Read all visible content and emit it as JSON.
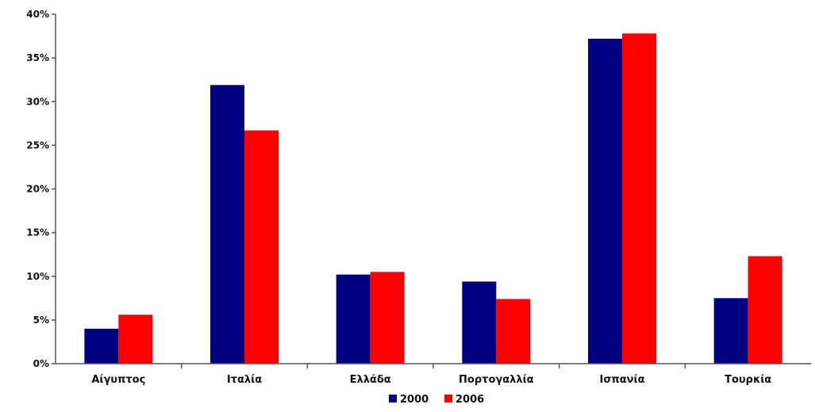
{
  "chart_data": {
    "type": "bar",
    "title": "",
    "xlabel": "",
    "ylabel": "",
    "categories": [
      "Αίγυπτος",
      "Ιταλία",
      "Ελλάδα",
      "Πορτογαλλία",
      "Ισπανία",
      "Τουρκία"
    ],
    "series": [
      {
        "name": "2000",
        "color": "#000080",
        "values": [
          4.0,
          31.9,
          10.2,
          9.4,
          37.2,
          7.5
        ]
      },
      {
        "name": "2006",
        "color": "#FF0000",
        "values": [
          5.6,
          26.7,
          10.5,
          7.4,
          37.8,
          12.3
        ]
      }
    ],
    "ylim": [
      0,
      40
    ],
    "yticks": [
      0,
      5,
      10,
      15,
      20,
      25,
      30,
      35,
      40
    ],
    "ytick_labels": [
      "0%",
      "5%",
      "10%",
      "15%",
      "20%",
      "25%",
      "30%",
      "35%",
      "40%"
    ],
    "grid": false,
    "legend_position": "bottom"
  }
}
